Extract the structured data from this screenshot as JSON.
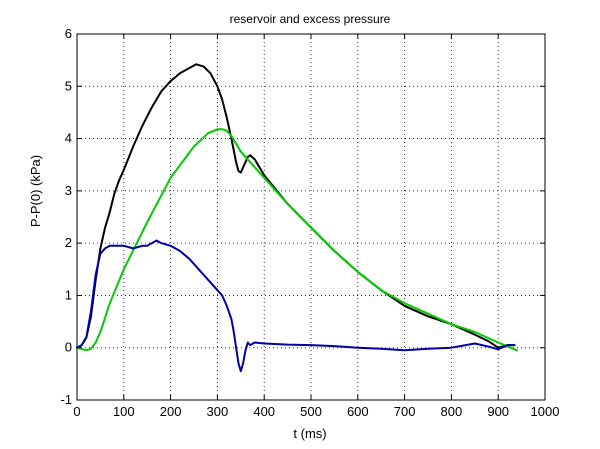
{
  "chart_data": {
    "type": "line",
    "title": "reservoir and excess pressure",
    "xlabel": "t  (ms)",
    "ylabel": "P-P(0)  (kPa)",
    "xlim": [
      0,
      1000
    ],
    "ylim": [
      -1,
      6
    ],
    "xticks": [
      0,
      100,
      200,
      300,
      400,
      500,
      600,
      700,
      800,
      900,
      1000
    ],
    "yticks": [
      -1,
      0,
      1,
      2,
      3,
      4,
      5,
      6
    ],
    "grid": true,
    "grid_style": "dotted",
    "series": [
      {
        "color": "#000000",
        "x": [
          0,
          10,
          20,
          30,
          40,
          50,
          60,
          70,
          80,
          90,
          100,
          120,
          140,
          160,
          180,
          200,
          220,
          240,
          255,
          270,
          285,
          300,
          310,
          320,
          330,
          340,
          345,
          350,
          355,
          360,
          365,
          370,
          380,
          390,
          400,
          450,
          500,
          550,
          600,
          650,
          700,
          750,
          800,
          850,
          880,
          900,
          920,
          935
        ],
        "y": [
          0,
          0.05,
          0.2,
          0.6,
          1.3,
          1.9,
          2.3,
          2.6,
          2.95,
          3.2,
          3.4,
          3.85,
          4.25,
          4.6,
          4.9,
          5.1,
          5.25,
          5.35,
          5.42,
          5.38,
          5.25,
          5.0,
          4.75,
          4.4,
          4.0,
          3.55,
          3.38,
          3.35,
          3.45,
          3.55,
          3.65,
          3.68,
          3.6,
          3.45,
          3.3,
          2.75,
          2.3,
          1.85,
          1.45,
          1.1,
          0.8,
          0.6,
          0.45,
          0.25,
          0.12,
          0.0,
          0.05,
          0.05
        ]
      },
      {
        "color": "#00cc00",
        "x": [
          0,
          20,
          30,
          40,
          50,
          70,
          100,
          150,
          200,
          250,
          280,
          300,
          310,
          320,
          330,
          340,
          350,
          360,
          380,
          400,
          450,
          500,
          550,
          600,
          650,
          700,
          750,
          800,
          850,
          900,
          940
        ],
        "y": [
          0,
          -0.05,
          -0.02,
          0.1,
          0.3,
          0.85,
          1.5,
          2.4,
          3.25,
          3.85,
          4.1,
          4.18,
          4.18,
          4.15,
          4.05,
          3.9,
          3.75,
          3.65,
          3.45,
          3.25,
          2.75,
          2.3,
          1.85,
          1.45,
          1.1,
          0.85,
          0.65,
          0.45,
          0.3,
          0.1,
          -0.05
        ]
      },
      {
        "color": "#0000aa",
        "x": [
          0,
          10,
          20,
          30,
          40,
          50,
          60,
          70,
          80,
          100,
          120,
          140,
          150,
          160,
          170,
          180,
          200,
          220,
          240,
          260,
          280,
          300,
          310,
          320,
          330,
          335,
          340,
          345,
          350,
          355,
          360,
          365,
          370,
          380,
          400,
          450,
          500,
          550,
          600,
          650,
          700,
          750,
          800,
          850,
          880,
          900,
          920,
          935
        ],
        "y": [
          0,
          0.05,
          0.2,
          0.7,
          1.4,
          1.8,
          1.9,
          1.95,
          1.95,
          1.95,
          1.9,
          1.95,
          1.95,
          2.0,
          2.05,
          2.0,
          1.95,
          1.85,
          1.7,
          1.5,
          1.3,
          1.1,
          1.0,
          0.8,
          0.55,
          0.3,
          0.0,
          -0.3,
          -0.45,
          -0.3,
          -0.05,
          0.1,
          0.05,
          0.1,
          0.08,
          0.06,
          0.05,
          0.03,
          0.0,
          -0.02,
          -0.05,
          -0.02,
          0.0,
          0.08,
          0.02,
          -0.03,
          0.05,
          0.05
        ]
      }
    ]
  }
}
